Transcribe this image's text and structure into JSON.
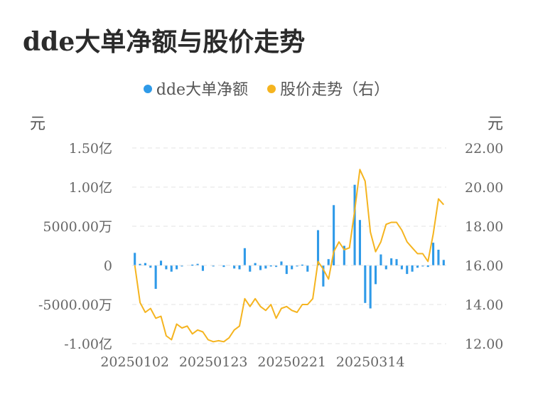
{
  "chart_data": {
    "title": "dde大单净额与股价走势",
    "type": "bar+line",
    "left_unit": "元",
    "right_unit": "元",
    "legend": [
      {
        "name": "dde大单净额",
        "color": "#2f9ae8"
      },
      {
        "name": "股价走势（右）",
        "color": "#f5b41f"
      }
    ],
    "y_left": {
      "min": -100000000,
      "max": 150000000,
      "ticks": [
        {
          "value": 150000000,
          "label": "1.50亿"
        },
        {
          "value": 100000000,
          "label": "1.00亿"
        },
        {
          "value": 50000000,
          "label": "5000.00万"
        },
        {
          "value": 0,
          "label": "0"
        },
        {
          "value": -50000000,
          "label": "-5000.00万"
        },
        {
          "value": -100000000,
          "label": "-1.00亿"
        }
      ]
    },
    "y_right": {
      "min": 12,
      "max": 22,
      "ticks": [
        {
          "value": 22,
          "label": "22.00"
        },
        {
          "value": 20,
          "label": "20.00"
        },
        {
          "value": 18,
          "label": "18.00"
        },
        {
          "value": 16,
          "label": "16.00"
        },
        {
          "value": 14,
          "label": "14.00"
        },
        {
          "value": 12,
          "label": "12.00"
        }
      ]
    },
    "x_ticks": [
      {
        "index": 0,
        "label": "20250102"
      },
      {
        "index": 15,
        "label": "20250123"
      },
      {
        "index": 30,
        "label": "20250221"
      },
      {
        "index": 45,
        "label": "20250314"
      }
    ],
    "grid": true,
    "series": [
      {
        "name": "dde大单净额",
        "kind": "bar",
        "axis": "left",
        "values": [
          16000000,
          2000000,
          3000000,
          -3000000,
          -30000000,
          6000000,
          -5000000,
          -8000000,
          -5000000,
          -1000000,
          0,
          1000000,
          2000000,
          -7000000,
          0,
          -1000000,
          0,
          -2000000,
          0,
          -4000000,
          -5000000,
          22000000,
          -8000000,
          3000000,
          -6000000,
          -4000000,
          -1000000,
          -2000000,
          5000000,
          -11000000,
          -5000000,
          -1000000,
          1000000,
          -8000000,
          0,
          45000000,
          -27000000,
          8000000,
          77000000,
          0,
          25000000,
          0,
          103000000,
          58000000,
          -48000000,
          -55000000,
          -24000000,
          14000000,
          -5000000,
          9000000,
          8000000,
          -5000000,
          -11000000,
          -8000000,
          -3000000,
          -1000000,
          -2000000,
          29000000,
          20000000,
          7000000
        ]
      },
      {
        "name": "股价走势（右）",
        "kind": "line",
        "axis": "right",
        "values": [
          16.0,
          14.1,
          13.6,
          13.8,
          13.3,
          13.4,
          12.4,
          12.2,
          13.0,
          12.8,
          12.9,
          12.5,
          12.7,
          12.6,
          12.2,
          12.1,
          12.15,
          12.1,
          12.3,
          12.7,
          12.9,
          14.3,
          13.9,
          14.3,
          13.9,
          13.7,
          14.0,
          13.3,
          13.8,
          13.9,
          13.7,
          13.6,
          14.0,
          14.0,
          14.3,
          16.2,
          15.8,
          15.3,
          16.7,
          17.2,
          16.8,
          16.9,
          18.8,
          20.9,
          20.3,
          17.7,
          16.7,
          17.2,
          18.1,
          18.2,
          18.2,
          17.8,
          17.2,
          16.9,
          16.6,
          16.6,
          16.2,
          17.6,
          19.4,
          19.1
        ]
      }
    ]
  }
}
